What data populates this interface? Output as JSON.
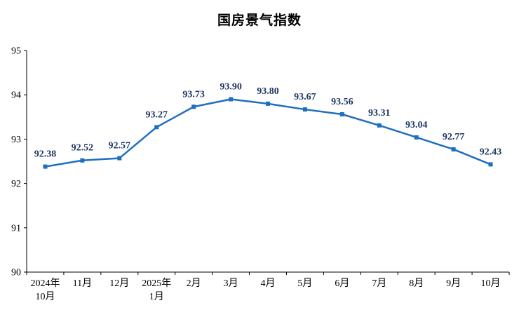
{
  "page": {
    "background_color": "#ffffff"
  },
  "chart_data": {
    "type": "line",
    "title": "国房景气指数",
    "categories": [
      "2024年\n10月",
      "11月",
      "12月",
      "2025年\n1月",
      "2月",
      "3月",
      "4月",
      "5月",
      "6月",
      "7月",
      "8月",
      "9月",
      "10月"
    ],
    "values": [
      92.38,
      92.52,
      92.57,
      93.27,
      93.73,
      93.9,
      93.8,
      93.67,
      93.56,
      93.31,
      93.04,
      92.77,
      92.43
    ],
    "data_labels": [
      "92.38",
      "92.52",
      "92.57",
      "93.27",
      "93.73",
      "93.90",
      "93.80",
      "93.67",
      "93.56",
      "93.31",
      "93.04",
      "92.77",
      "92.43"
    ],
    "xlabel": "",
    "ylabel": "",
    "ylim": [
      90,
      95
    ],
    "yticks": [
      90,
      91,
      92,
      93,
      94,
      95
    ],
    "grid": false,
    "legend_position": "none",
    "line_color": "#1F6FC0",
    "marker_color": "#1F6FC0",
    "marker_shape": "square",
    "data_label_color": "#203864",
    "axis_color": "#000000"
  }
}
